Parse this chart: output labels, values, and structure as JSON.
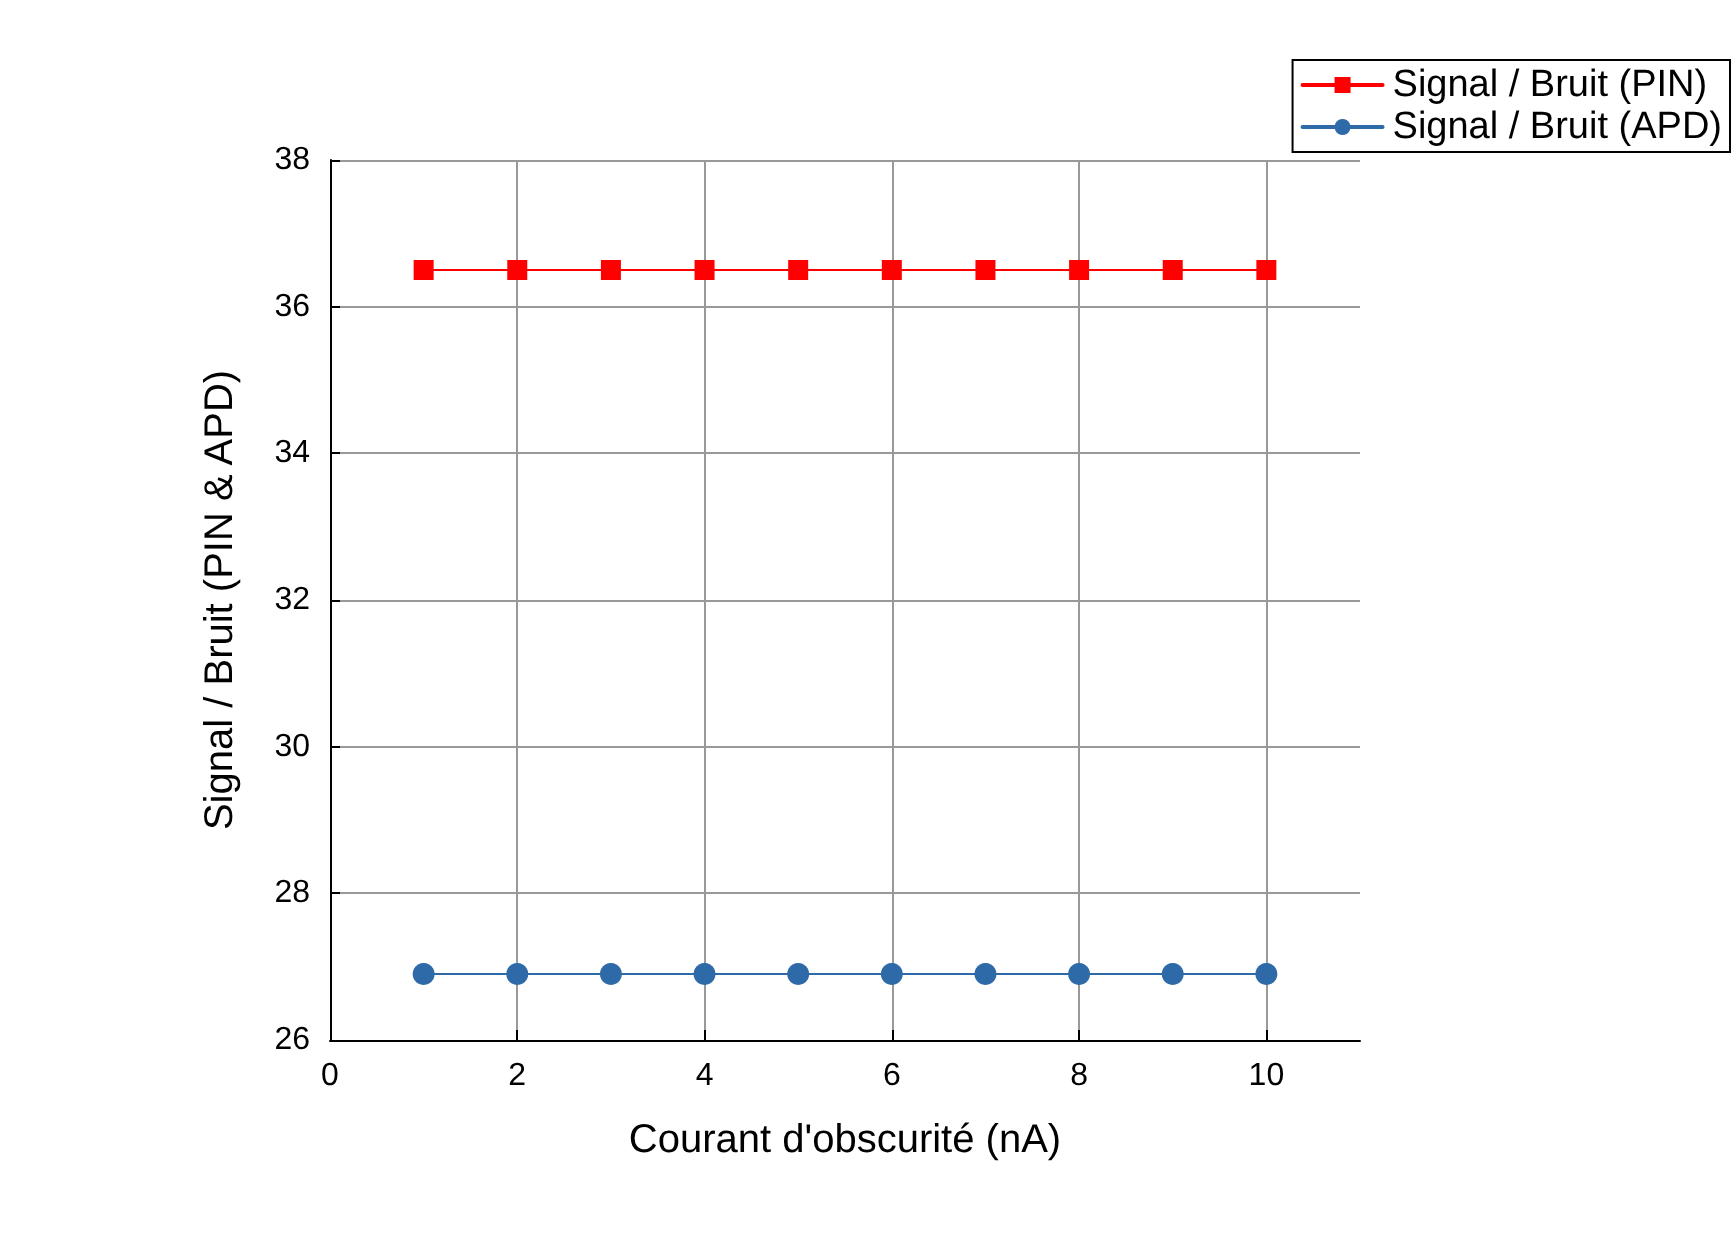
{
  "chart_data": {
    "type": "line",
    "xlabel": "Courant d'obscurité (nA)",
    "ylabel": "Signal / Bruit (PIN & APD)",
    "x": [
      1,
      2,
      3,
      4,
      5,
      6,
      7,
      8,
      9,
      10
    ],
    "series": [
      {
        "name": "Signal / Bruit (PIN)",
        "color": "#ff0000",
        "marker": "square",
        "values": [
          36.5,
          36.5,
          36.5,
          36.5,
          36.5,
          36.5,
          36.5,
          36.5,
          36.5,
          36.5
        ]
      },
      {
        "name": "Signal / Bruit (APD)",
        "color": "#2f6aa8",
        "marker": "circle",
        "values": [
          26.9,
          26.9,
          26.9,
          26.9,
          26.9,
          26.9,
          26.9,
          26.9,
          26.9,
          26.9
        ]
      }
    ],
    "xlim": [
      0,
      11
    ],
    "xticks": [
      0,
      2,
      4,
      6,
      8,
      10
    ],
    "ylim": [
      26,
      38
    ],
    "yticks": [
      26,
      28,
      30,
      32,
      34,
      36,
      38
    ],
    "grid": true,
    "legend": "top right",
    "line_style": "solid"
  }
}
